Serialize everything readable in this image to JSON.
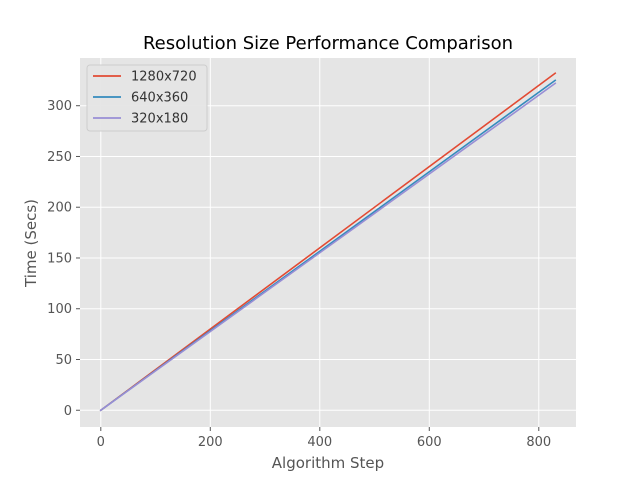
{
  "chart_data": {
    "type": "line",
    "title": "Resolution Size Performance Comparison",
    "xlabel": "Algorithm Step",
    "ylabel": "Time (Secs)",
    "xlim": [
      -38,
      868
    ],
    "ylim": [
      -16.5,
      347
    ],
    "xticks": [
      0,
      200,
      400,
      600,
      800
    ],
    "yticks": [
      0,
      50,
      100,
      150,
      200,
      250,
      300
    ],
    "grid": true,
    "legend_position": "top-left",
    "series": [
      {
        "name": "1280x720",
        "color": "#E24A33",
        "x": [
          0,
          830
        ],
        "y": [
          0,
          332
        ]
      },
      {
        "name": "640x360",
        "color": "#348ABD",
        "x": [
          0,
          830
        ],
        "y": [
          0,
          325
        ]
      },
      {
        "name": "320x180",
        "color": "#988ED5",
        "x": [
          0,
          830
        ],
        "y": [
          0,
          322
        ]
      }
    ]
  }
}
